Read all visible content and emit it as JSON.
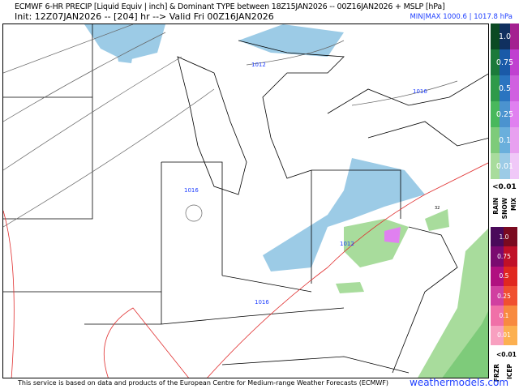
{
  "header": {
    "title": "ECMWF 6-HR PRECIP [Liquid Equiv | inch] & Dominant TYPE between 18Z15JAN2026 -- 00Z16JAN2026 + MSLP [hPa]",
    "init": "Init: 12Z07JAN2026 -- [204] hr --> Valid Fri 00Z16JAN2026",
    "minmax": "MIN|MAX 1000.6 | 1017.8 hPa"
  },
  "map": {
    "isobar_labels": [
      "1012",
      "1016",
      "1016",
      "1012",
      "1016"
    ],
    "freezing_labels": [
      "32"
    ]
  },
  "legend": {
    "top_levels": [
      "1.0",
      "0.75",
      "0.5",
      "0.25",
      "0.1",
      "0.01"
    ],
    "top_colors": {
      "rain": [
        "#0b4a23",
        "#1b7a3a",
        "#2f9a4a",
        "#49b85c",
        "#7ecb7a",
        "#a8dc9c"
      ],
      "snow": [
        "#10305f",
        "#1a5aa8",
        "#2a74c0",
        "#4b93cf",
        "#6aafdc",
        "#9ccbe6"
      ],
      "mix": [
        "#a42090",
        "#c040d0",
        "#d060e0",
        "#e080f0",
        "#e8a0f0",
        "#f0c8f8"
      ]
    },
    "top_below": "<0.01",
    "top_types": [
      "RAIN",
      "SNOW",
      "MIX"
    ],
    "bottom_levels": [
      "1.0",
      "0.75",
      "0.5",
      "0.25",
      "0.1",
      "0.01"
    ],
    "bottom_colors": {
      "frzr": [
        "#4a0a5a",
        "#7a0a70",
        "#b01080",
        "#d040a0",
        "#f070a8",
        "#f8a0c0"
      ],
      "icep": [
        "#7a0a20",
        "#c01028",
        "#e02820",
        "#f05030",
        "#f88a40",
        "#fcb050"
      ]
    },
    "bottom_below": "<0.01",
    "bottom_types": [
      "FRZR",
      "ICEP"
    ]
  },
  "footer": {
    "credit": "This service is based on data and products of the European Centre for Medium-range Weather Forecasts (ECMWF)",
    "site": "weathermodels.com"
  }
}
